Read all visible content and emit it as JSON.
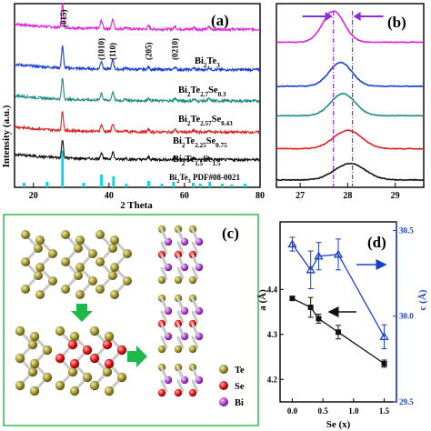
{
  "chart_data": [
    {
      "type": "line",
      "panel_label": "(a)",
      "xlabel": "2 Theta",
      "ylabel": "Intensity (a.u.)",
      "xlim": [
        15,
        80
      ],
      "xticks": [
        "20",
        "40",
        "60",
        "80"
      ],
      "peak_labels": [
        {
          "text": "(015)",
          "x": 28
        },
        {
          "text": "(1010)",
          "x": 38
        },
        {
          "text": "(110)",
          "x": 41
        },
        {
          "text": "(205)",
          "x": 50.5
        },
        {
          "text": "(0210)",
          "x": 57.5
        }
      ],
      "series": [
        {
          "name": "Bi2Te3",
          "name_main": "Bi",
          "name_parts": [
            {
              "t": "Bi"
            },
            {
              "t": "2",
              "sub": true
            },
            {
              "t": "Te"
            },
            {
              "t": "3",
              "sub": true
            }
          ],
          "color": "#e020e0",
          "offset": 0.86
        },
        {
          "name": "Bi2Te2.7Se0.3",
          "name_parts": [
            {
              "t": "Bi"
            },
            {
              "t": "2",
              "sub": true
            },
            {
              "t": "Te"
            },
            {
              "t": "2.7",
              "sub": true
            },
            {
              "t": "Se"
            },
            {
              "t": "0.3",
              "sub": true
            }
          ],
          "color": "#1a3fd0",
          "offset": 0.64
        },
        {
          "name": "Bi2Te2.57Se0.43",
          "name_parts": [
            {
              "t": "Bi"
            },
            {
              "t": "2",
              "sub": true
            },
            {
              "t": "Te"
            },
            {
              "t": "2.57",
              "sub": true
            },
            {
              "t": "Se"
            },
            {
              "t": "0.43",
              "sub": true
            }
          ],
          "color": "#1f8c82",
          "offset": 0.47
        },
        {
          "name": "Bi2Te2.25Se0.75",
          "name_parts": [
            {
              "t": "Bi"
            },
            {
              "t": "2",
              "sub": true
            },
            {
              "t": "Te"
            },
            {
              "t": "2.25",
              "sub": true
            },
            {
              "t": "Se"
            },
            {
              "t": "0.75",
              "sub": true
            }
          ],
          "color": "#e02020",
          "offset": 0.3
        },
        {
          "name": "Bi2Te1.5Se1.5",
          "name_parts": [
            {
              "t": "Bi"
            },
            {
              "t": "2",
              "sub": true
            },
            {
              "t": "Te"
            },
            {
              "t": "1.5",
              "sub": true
            },
            {
              "t": "Se"
            },
            {
              "t": "1.5",
              "sub": true
            }
          ],
          "color": "#111111",
          "offset": 0.15
        }
      ],
      "peaks": [
        {
          "x": 27.7,
          "h": 1.0,
          "w": 0.35
        },
        {
          "x": 38.0,
          "h": 0.35,
          "w": 0.4
        },
        {
          "x": 41.0,
          "h": 0.4,
          "w": 0.4
        },
        {
          "x": 44.5,
          "h": 0.08,
          "w": 0.4
        },
        {
          "x": 50.5,
          "h": 0.12,
          "w": 0.4
        },
        {
          "x": 57.5,
          "h": 0.12,
          "w": 0.4
        },
        {
          "x": 62.5,
          "h": 0.08,
          "w": 0.4
        },
        {
          "x": 66.5,
          "h": 0.1,
          "w": 0.4
        }
      ],
      "reference": {
        "label": "Bi2Te3 PDF#08-0021",
        "label_parts": [
          {
            "t": "Bi"
          },
          {
            "t": "2",
            "sub": true
          },
          {
            "t": "Te"
          },
          {
            "t": "3",
            "sub": true
          },
          {
            "t": " PDF#08-0021"
          }
        ],
        "color": "#00d8e8",
        "sticks": [
          {
            "x": 17.5,
            "h": 0.05
          },
          {
            "x": 23.6,
            "h": 0.06
          },
          {
            "x": 27.7,
            "h": 0.4
          },
          {
            "x": 33.3,
            "h": 0.05
          },
          {
            "x": 38.0,
            "h": 0.14
          },
          {
            "x": 41.2,
            "h": 0.12
          },
          {
            "x": 44.6,
            "h": 0.04
          },
          {
            "x": 50.5,
            "h": 0.07
          },
          {
            "x": 54.0,
            "h": 0.04
          },
          {
            "x": 57.1,
            "h": 0.06
          },
          {
            "x": 62.3,
            "h": 0.05
          },
          {
            "x": 64.2,
            "h": 0.04
          },
          {
            "x": 66.7,
            "h": 0.06
          },
          {
            "x": 70.0,
            "h": 0.04
          },
          {
            "x": 72.5,
            "h": 0.03
          },
          {
            "x": 76.0,
            "h": 0.04
          }
        ]
      }
    },
    {
      "type": "line",
      "panel_label": "(b)",
      "xlim": [
        26.5,
        29.6
      ],
      "xticks": [
        "27",
        "28",
        "29"
      ],
      "dashed_lines_x": [
        27.7,
        28.1
      ],
      "marker_color": "#8a2be2",
      "series": [
        {
          "color": "#e020e0",
          "center": 27.7,
          "offset": 0.79,
          "h": 0.17,
          "w": 0.32
        },
        {
          "color": "#1a3fd0",
          "center": 27.85,
          "offset": 0.55,
          "h": 0.13,
          "w": 0.34
        },
        {
          "color": "#1f8c82",
          "center": 27.9,
          "offset": 0.39,
          "h": 0.12,
          "w": 0.36
        },
        {
          "color": "#e02020",
          "center": 28.0,
          "offset": 0.21,
          "h": 0.1,
          "w": 0.42
        },
        {
          "color": "#111111",
          "center": 28.05,
          "offset": 0.04,
          "h": 0.09,
          "w": 0.45
        }
      ]
    },
    {
      "type": "scatter",
      "panel_label": "(d)",
      "xlabel": "Se (x)",
      "xlim": [
        -0.2,
        1.7
      ],
      "xticks": [
        "0.0",
        "0.5",
        "1.0",
        "1.5"
      ],
      "ylabel_left": "a (Å)",
      "ylim_left": [
        4.15,
        4.55
      ],
      "yticks_left": [
        "4.2",
        "4.3",
        "4.4"
      ],
      "ylabel_right": "c (Å)",
      "ylim_right": [
        29.5,
        30.55
      ],
      "yticks_right": [
        "29.5",
        "30.0",
        "30.5"
      ],
      "series": [
        {
          "name": "a",
          "axis": "left",
          "color": "#111111",
          "marker": "square",
          "x": [
            0.0,
            0.3,
            0.43,
            0.75,
            1.5
          ],
          "y": [
            4.38,
            4.36,
            4.335,
            4.305,
            4.235
          ],
          "err": [
            0.0,
            0.022,
            0.01,
            0.015,
            0.008
          ]
        },
        {
          "name": "c",
          "axis": "right",
          "color": "#1a3fd0",
          "marker": "triangle",
          "x": [
            0.0,
            0.3,
            0.43,
            0.75,
            1.5
          ],
          "y": [
            30.42,
            30.27,
            30.35,
            30.36,
            29.88
          ],
          "err": [
            0.04,
            0.11,
            0.08,
            0.09,
            0.07
          ]
        }
      ]
    }
  ],
  "diagram": {
    "panel_label": "(c)",
    "legend": [
      {
        "label": "Te",
        "color": "#a0962e"
      },
      {
        "label": "Se",
        "color": "#e01818"
      },
      {
        "label": "Bi",
        "color": "#b040d8"
      }
    ],
    "arrow_color": "#1fb84a"
  }
}
